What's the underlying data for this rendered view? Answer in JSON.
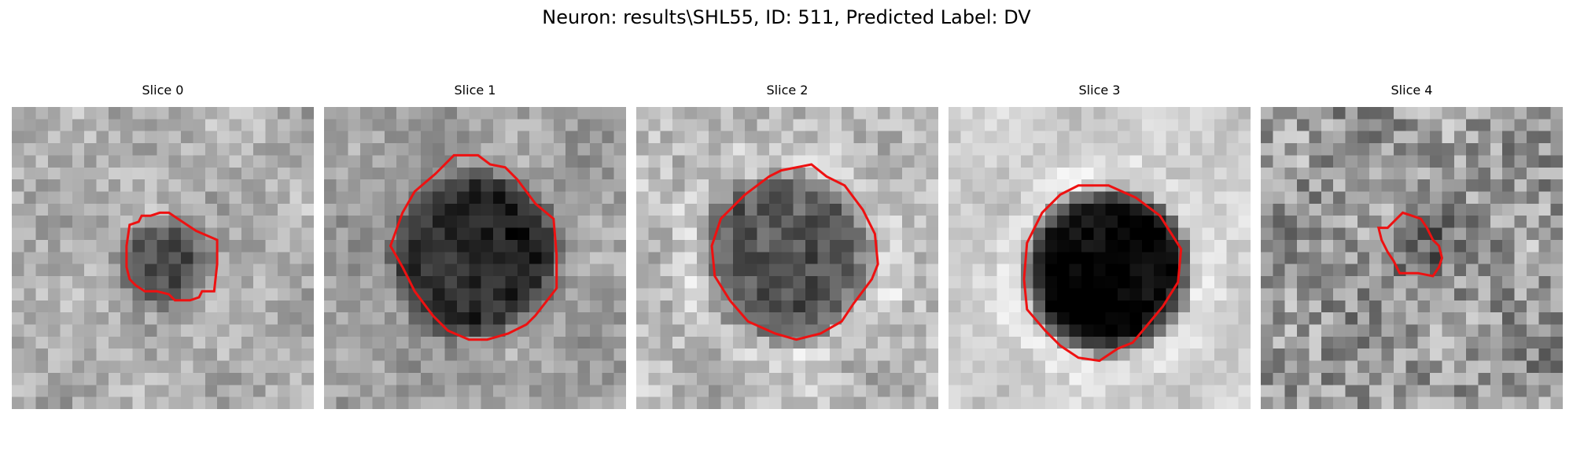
{
  "figure": {
    "title": "Neuron: results\\SHL55, ID: 511, Predicted Label: DV"
  },
  "panels": [
    {
      "title": "Slice 0"
    },
    {
      "title": "Slice 1"
    },
    {
      "title": "Slice 2"
    },
    {
      "title": "Slice 3"
    },
    {
      "title": "Slice 4"
    }
  ],
  "colors": {
    "contour": "#ee1111",
    "background": "#ffffff"
  }
}
